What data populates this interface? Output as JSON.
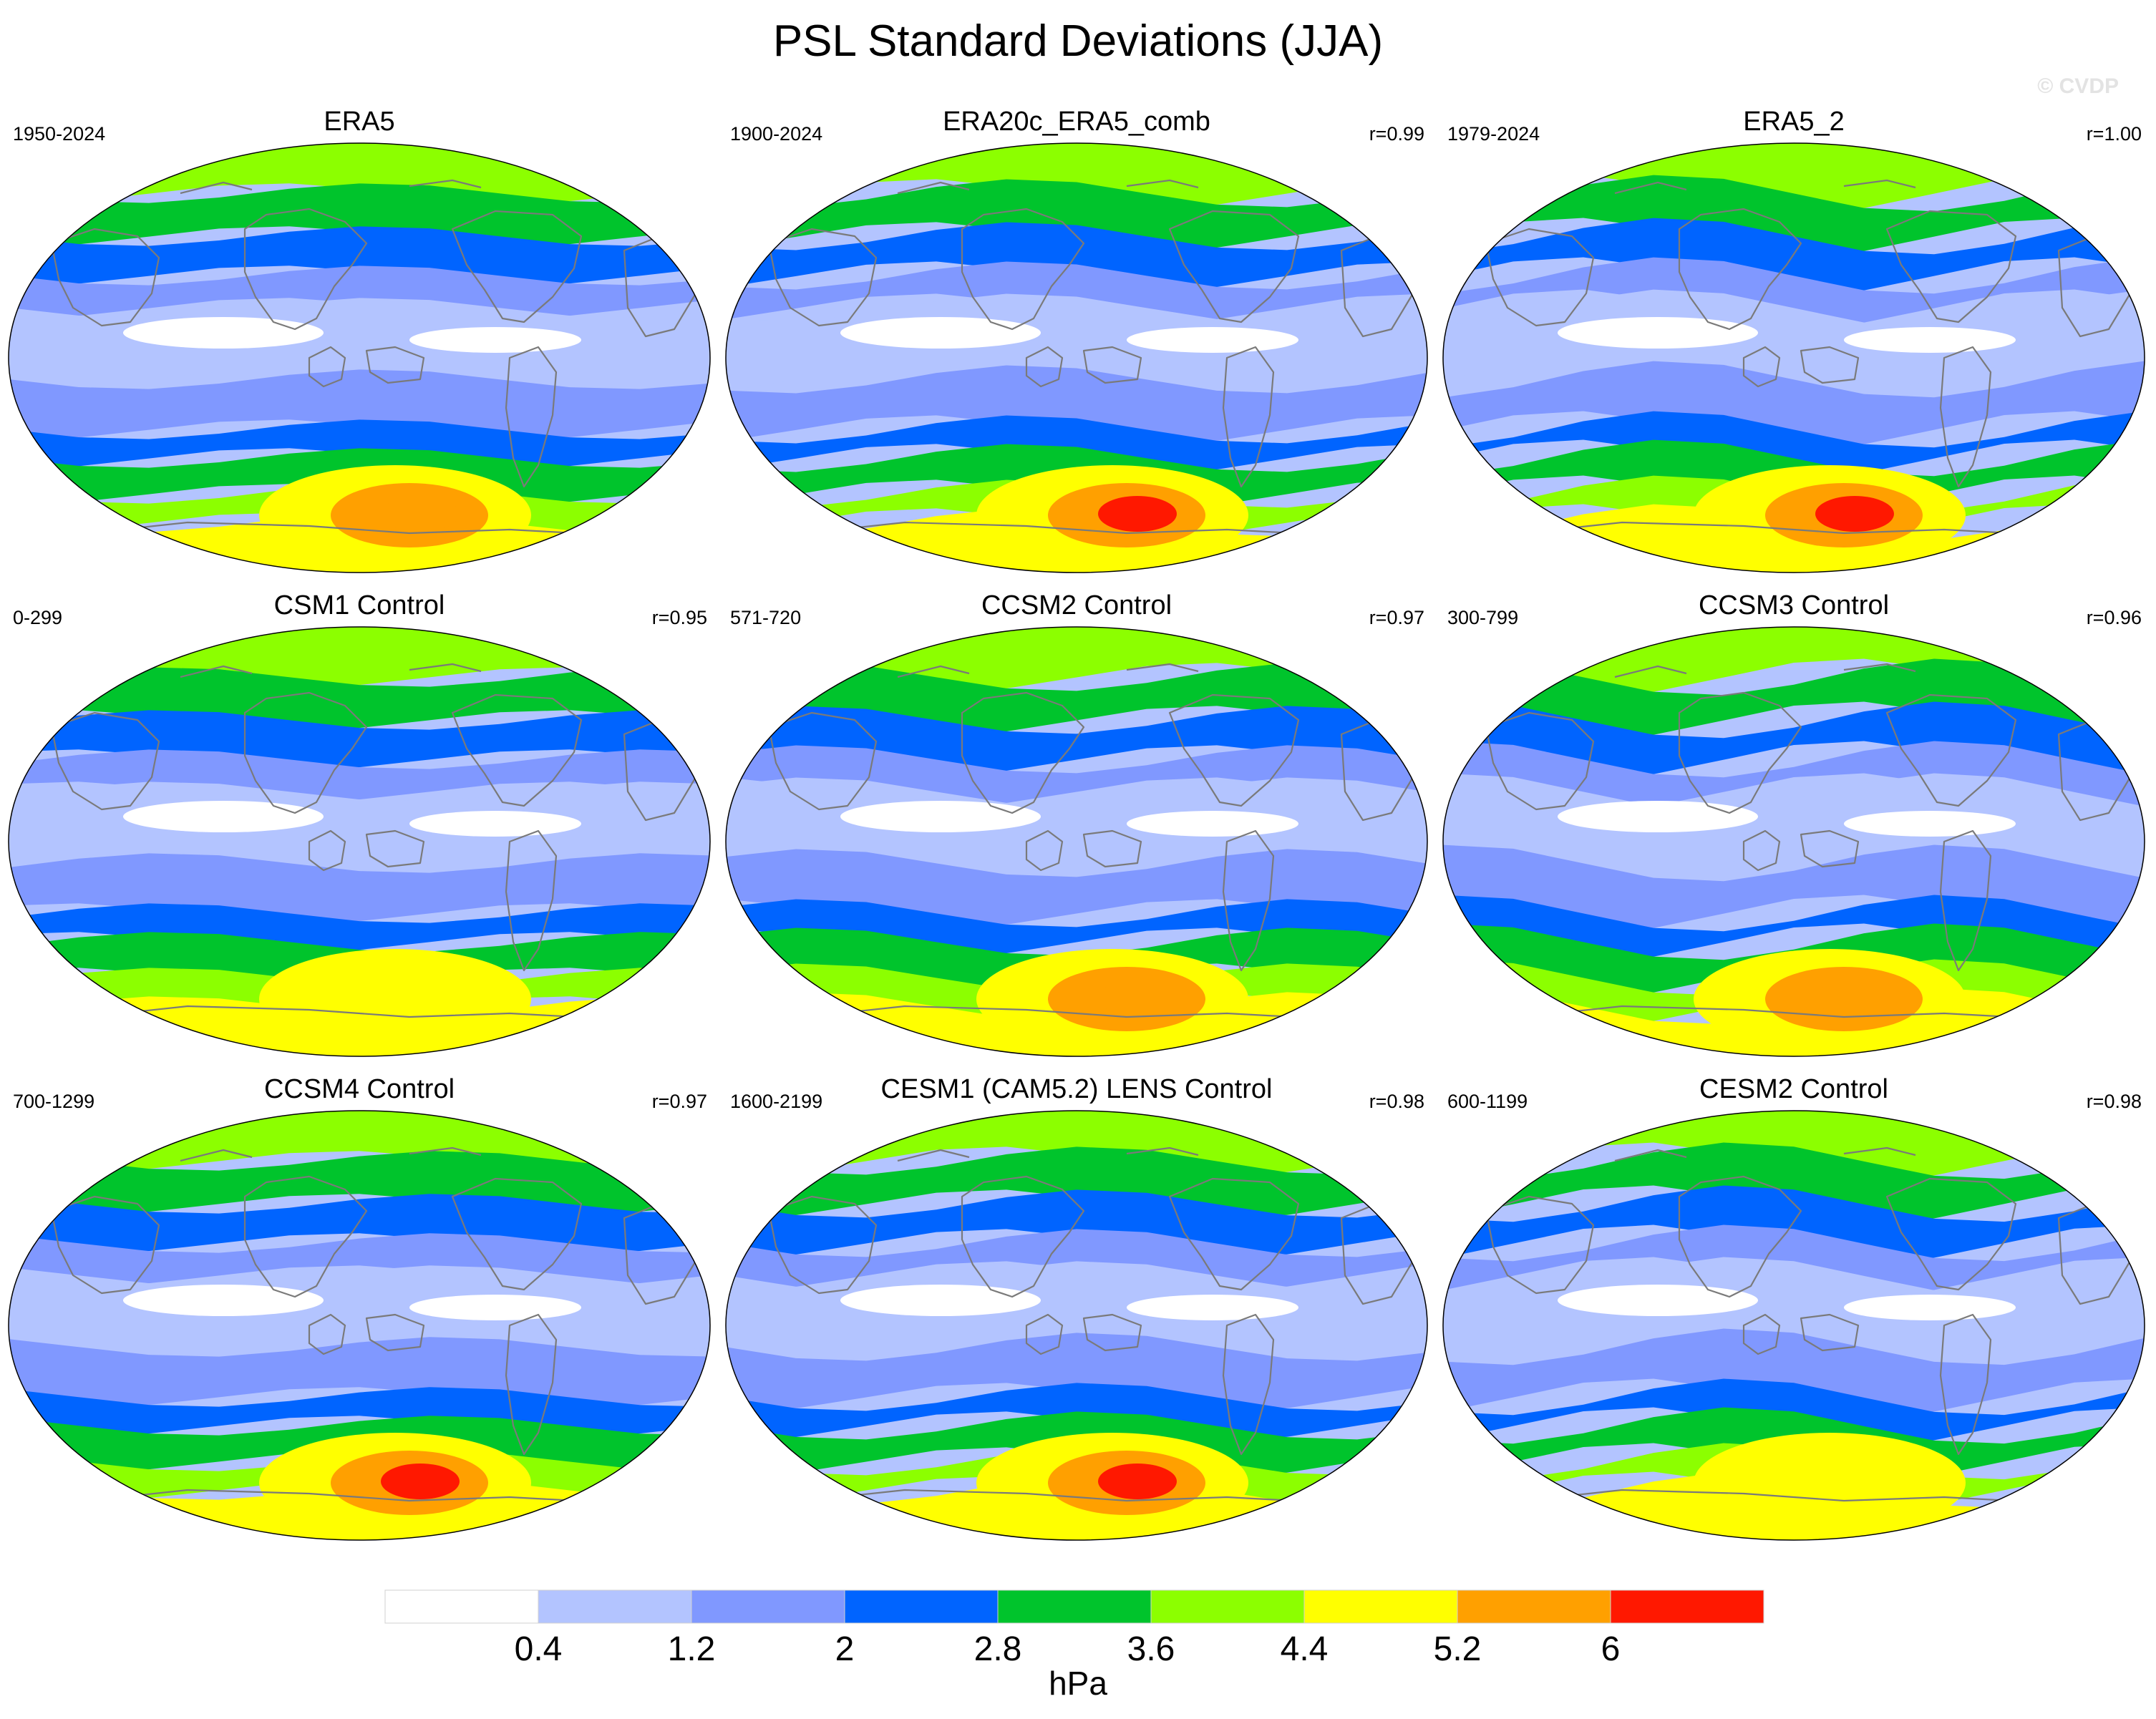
{
  "title": "PSL Standard Deviations (JJA)",
  "credit": "© CVDP",
  "chart_data": {
    "type": "heatmap",
    "title": "PSL Standard Deviations (JJA)",
    "variable": "PSL",
    "season": "JJA",
    "projection": "global map",
    "colorbar": {
      "levels": [
        0.4,
        1.2,
        2,
        2.8,
        3.6,
        4.4,
        5.2,
        6
      ],
      "tick_labels": [
        "0.4",
        "1.2",
        "2",
        "2.8",
        "3.6",
        "4.4",
        "5.2",
        "6"
      ],
      "colors": [
        "#ffffff",
        "#b3c4ff",
        "#8098ff",
        "#0064ff",
        "#00c42c",
        "#8cff00",
        "#ffff00",
        "#ffa000",
        "#ff1800"
      ],
      "unit": "hPa"
    },
    "panels": [
      {
        "name": "ERA5",
        "years": "1950-2024",
        "r": "",
        "max_level": 8
      },
      {
        "name": "ERA20c_ERA5_comb",
        "years": "1900-2024",
        "r": "r=0.99",
        "max_level": 9
      },
      {
        "name": "ERA5_2",
        "years": "1979-2024",
        "r": "r=1.00",
        "max_level": 9
      },
      {
        "name": "CSM1 Control",
        "years": "0-299",
        "r": "r=0.95",
        "max_level": 7
      },
      {
        "name": "CCSM2 Control",
        "years": "571-720",
        "r": "r=0.97",
        "max_level": 8
      },
      {
        "name": "CCSM3 Control",
        "years": "300-799",
        "r": "r=0.96",
        "max_level": 8
      },
      {
        "name": "CCSM4 Control",
        "years": "700-1299",
        "r": "r=0.97",
        "max_level": 9
      },
      {
        "name": "CESM1 (CAM5.2) LENS Control",
        "years": "1600-2199",
        "r": "r=0.98",
        "max_level": 9
      },
      {
        "name": "CESM2 Control",
        "years": "600-1199",
        "r": "r=0.98",
        "max_level": 7
      }
    ]
  }
}
